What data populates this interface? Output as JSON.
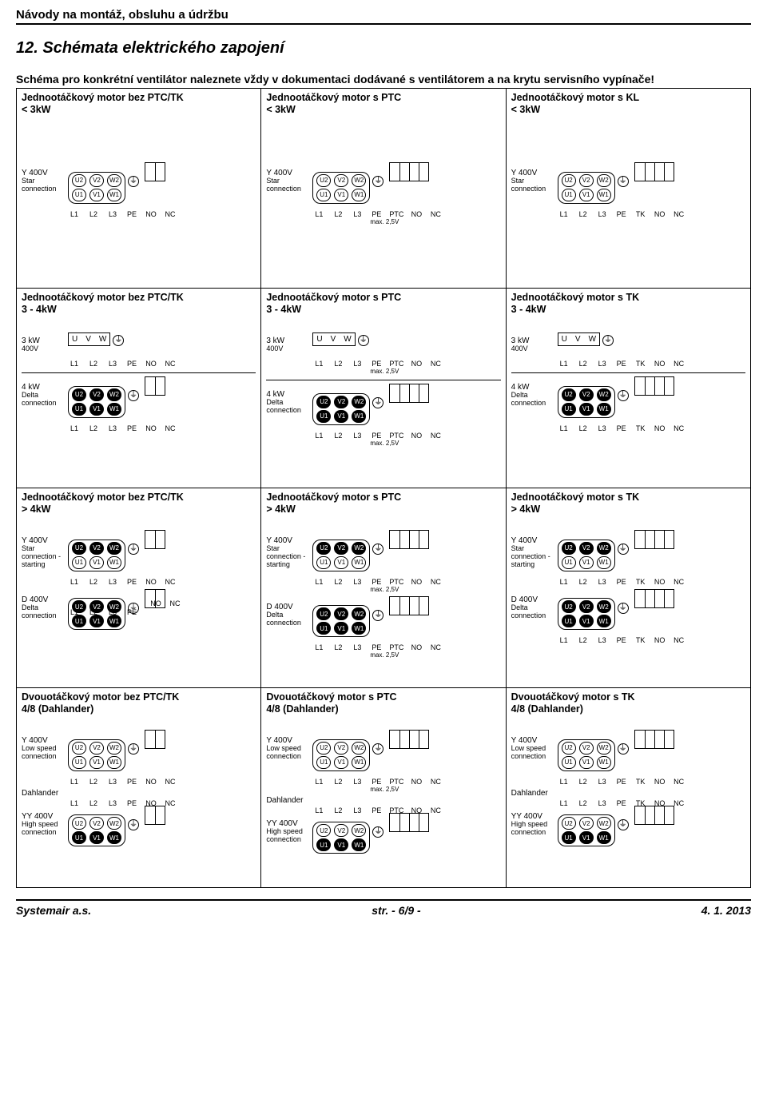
{
  "header": "Návody na montáž, obsluhu a údržbu",
  "section_title": "12.  Schémata elektrického zapojení",
  "intro": "Schéma pro konkrétní ventilátor naleznete vždy v dokumentaci dodávané s ventilátorem a na krytu servisního vypínače!",
  "footer": {
    "left": "Systemair a.s.",
    "center": "str. - 6/9 -",
    "right": "4. 1. 2013"
  },
  "labels": {
    "y400": "Y 400V",
    "star": "Star connection",
    "d400": "D 400V",
    "delta": "Delta connection",
    "starting": "Star connection - starting",
    "kw3": "3 kW\n400V",
    "kw4": "4 kW\nD 400V",
    "low": "Low speed connection",
    "high": "High speed connection",
    "yy400": "YY 400V",
    "dahlander": "Dahlander",
    "max": "max. 2,5V"
  },
  "terms": {
    "top": [
      "U2",
      "V2",
      "W2"
    ],
    "bot": [
      "U1",
      "V1",
      "W1"
    ],
    "uvw": [
      "U",
      "V",
      "W"
    ]
  },
  "wire_sets": {
    "basic": [
      "L1",
      "L2",
      "L3",
      "PE",
      "NO",
      "NC"
    ],
    "ptc": [
      "L1",
      "L2",
      "L3",
      "PE",
      "PTC",
      "NO",
      "NC"
    ],
    "tk": [
      "L1",
      "L2",
      "L3",
      "PE",
      "TK",
      "NO",
      "NC"
    ],
    "pe_only": [
      "L1",
      "L2",
      "L3",
      "PE"
    ],
    "pe_ptc": [
      "L1",
      "L2",
      "L3",
      "PE",
      "PTC",
      "NO",
      "NC"
    ]
  },
  "cells": [
    [
      {
        "title": "Jednootáčkový motor bez PTC/TK\n< 3kW",
        "type": "single_lt3_basic"
      },
      {
        "title": "Jednootáčkový motor s PTC\n < 3kW",
        "type": "single_lt3_ptc"
      },
      {
        "title": "Jednootáčkový motor s KL\n< 3kW",
        "type": "single_lt3_tk"
      }
    ],
    [
      {
        "title": "Jednootáčkový motor bez PTC/TK\n3 - 4kW",
        "type": "single_34_basic"
      },
      {
        "title": "Jednootáčkový motor s PTC\n3 - 4kW",
        "type": "single_34_ptc"
      },
      {
        "title": "Jednootáčkový motor s TK\n3 - 4kW",
        "type": "single_34_tk"
      }
    ],
    [
      {
        "title": "Jednootáčkový motor bez PTC/TK\n> 4kW",
        "type": "single_gt4_basic"
      },
      {
        "title": "Jednootáčkový motor s PTC\n> 4kW",
        "type": "single_gt4_ptc"
      },
      {
        "title": "Jednootáčkový motor s TK\n> 4kW",
        "type": "single_gt4_tk"
      }
    ],
    [
      {
        "title": "Dvouotáčkový motor bez PTC/TK\n4/8 (Dahlander)",
        "type": "dahl_basic"
      },
      {
        "title": "Dvouotáčkový motor s PTC\n4/8 (Dahlander)",
        "type": "dahl_ptc"
      },
      {
        "title": "Dvouotáčkový motor s TK\n4/8 (Dahlander)",
        "type": "dahl_tk"
      }
    ]
  ]
}
